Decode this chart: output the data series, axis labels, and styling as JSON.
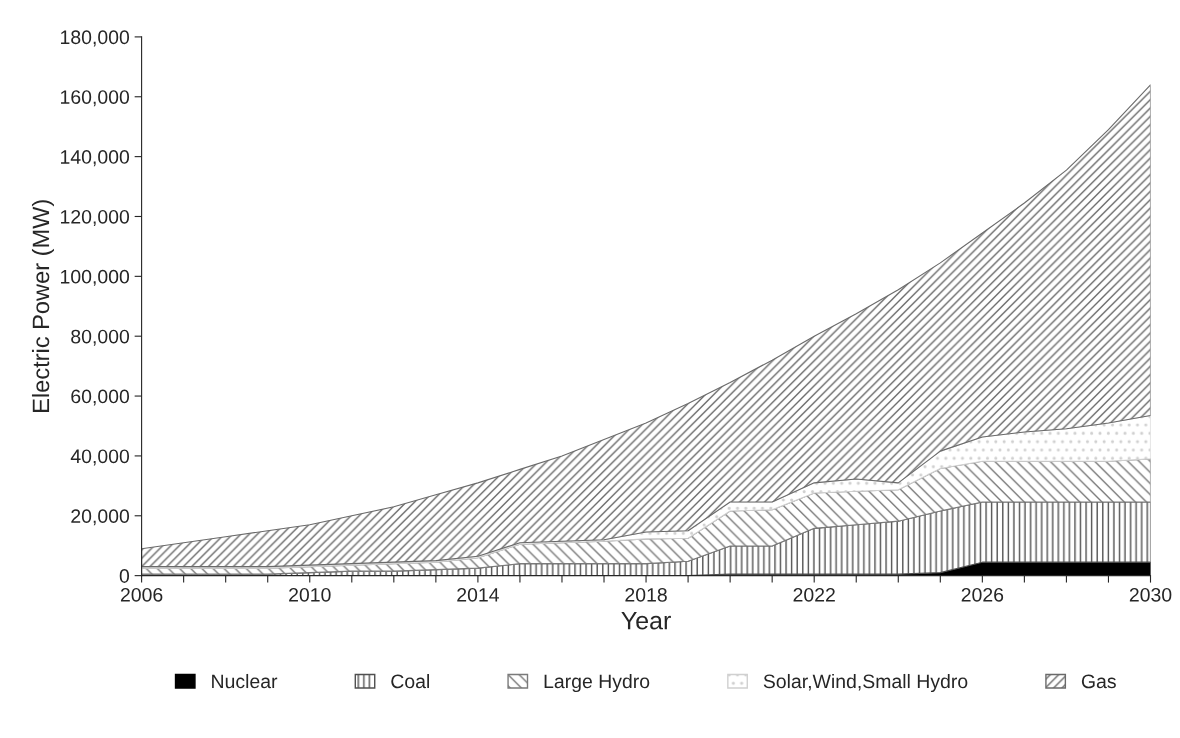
{
  "chart_data": {
    "type": "area",
    "stacked": true,
    "xlabel": "Year",
    "ylabel": "Electric Power (MW)",
    "x": [
      2006,
      2007,
      2008,
      2009,
      2010,
      2011,
      2012,
      2013,
      2014,
      2015,
      2016,
      2017,
      2018,
      2019,
      2020,
      2021,
      2022,
      2023,
      2024,
      2025,
      2026,
      2027,
      2028,
      2029,
      2030
    ],
    "series": [
      {
        "name": "Nuclear",
        "color": "#000000",
        "values": [
          0,
          0,
          0,
          0,
          0,
          0,
          0,
          0,
          0,
          0,
          0,
          0,
          0,
          0,
          500,
          500,
          500,
          500,
          500,
          1000,
          4500,
          4500,
          4500,
          4500,
          4500
        ]
      },
      {
        "name": "Coal",
        "color": "#505050",
        "values": [
          500,
          500,
          500,
          500,
          1000,
          1500,
          1500,
          2000,
          2500,
          4000,
          4000,
          4000,
          4000,
          4800,
          9400,
          9400,
          15300,
          16500,
          17700,
          20600,
          20100,
          20100,
          20100,
          20100,
          20100
        ]
      },
      {
        "name": "Large Hydro",
        "color": "#7a7a7a",
        "values": [
          2000,
          2000,
          2000,
          2000,
          2000,
          2000,
          2500,
          2500,
          3500,
          6500,
          7000,
          7500,
          8300,
          7700,
          11700,
          12100,
          11800,
          11200,
          10500,
          14200,
          13600,
          13600,
          13600,
          13600,
          14400
        ]
      },
      {
        "name": "Solar,Wind,Small Hydro",
        "color": "#d0d0d0",
        "values": [
          500,
          500,
          500,
          500,
          500,
          500,
          500,
          500,
          500,
          500,
          500,
          500,
          2300,
          2500,
          3000,
          2600,
          3400,
          4100,
          2300,
          5800,
          8100,
          9800,
          10900,
          12800,
          14500
        ]
      },
      {
        "name": "Gas",
        "color": "#6a6a6a",
        "values": [
          6000,
          8000,
          10000,
          12000,
          13500,
          16000,
          18500,
          22000,
          24500,
          24500,
          28500,
          33500,
          36400,
          42500,
          39900,
          47400,
          49000,
          55200,
          64500,
          62900,
          68200,
          76500,
          86400,
          98000,
          110500
        ]
      }
    ],
    "xlim": [
      2006,
      2030
    ],
    "xticks": [
      2006,
      {
        "value": 2007,
        "label": null
      },
      {
        "value": 2008,
        "label": null
      },
      {
        "value": 2009,
        "label": null
      },
      2010,
      {
        "value": 2011,
        "label": null
      },
      {
        "value": 2012,
        "label": null
      },
      {
        "value": 2013,
        "label": null
      },
      2014,
      {
        "value": 2015,
        "label": null
      },
      {
        "value": 2016,
        "label": null
      },
      {
        "value": 2017,
        "label": null
      },
      2018,
      {
        "value": 2019,
        "label": null
      },
      {
        "value": 2020,
        "label": null
      },
      {
        "value": 2021,
        "label": null
      },
      2022,
      {
        "value": 2023,
        "label": null
      },
      {
        "value": 2024,
        "label": null
      },
      {
        "value": 2025,
        "label": null
      },
      2026,
      {
        "value": 2027,
        "label": null
      },
      {
        "value": 2028,
        "label": null
      },
      {
        "value": 2029,
        "label": null
      },
      2030
    ],
    "ylim": [
      0,
      180000
    ],
    "yticks": [
      0,
      {
        "value": 20000,
        "label": "20,000"
      },
      {
        "value": 40000,
        "label": "40,000"
      },
      {
        "value": 60000,
        "label": "60,000"
      },
      {
        "value": 80000,
        "label": "80,000"
      },
      {
        "value": 100000,
        "label": "100,000"
      },
      {
        "value": 120000,
        "label": "120,000"
      },
      {
        "value": 140000,
        "label": "140,000"
      },
      {
        "value": 160000,
        "label": "160,000"
      },
      {
        "value": 180000,
        "label": "180,000"
      }
    ],
    "grid": false,
    "legend": "bottom"
  }
}
